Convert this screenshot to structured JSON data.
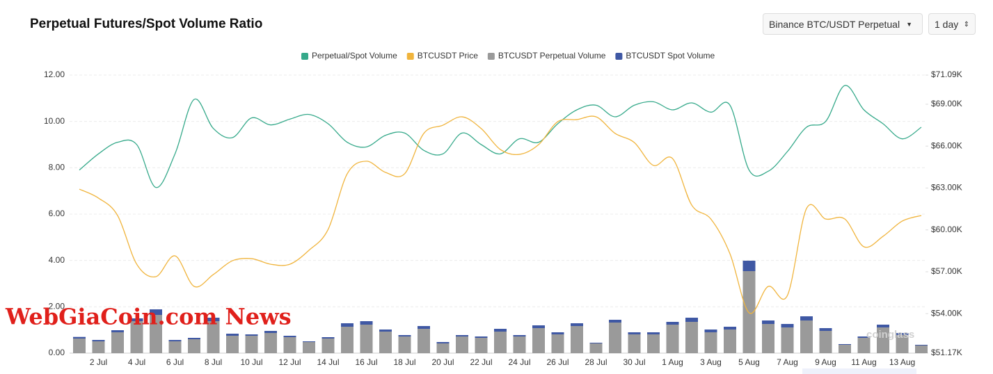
{
  "header": {
    "title": "Perpetual Futures/Spot Volume Ratio",
    "pair_select": "Binance BTC/USDT Perpetual",
    "interval_select": "1 day"
  },
  "watermark": "WebGiaCoin.com News",
  "brand_watermark": "coinglass",
  "chart_data": {
    "type": "combo",
    "categories": [
      null,
      "2 Jul",
      null,
      "4 Jul",
      null,
      "6 Jul",
      null,
      "8 Jul",
      null,
      "10 Jul",
      null,
      "12 Jul",
      null,
      "14 Jul",
      null,
      "16 Jul",
      null,
      "18 Jul",
      null,
      "20 Jul",
      null,
      "22 Jul",
      null,
      "24 Jul",
      null,
      "26 Jul",
      null,
      "28 Jul",
      null,
      "30 Jul",
      null,
      "1 Aug",
      null,
      "3 Aug",
      null,
      "5 Aug",
      null,
      "7 Aug",
      null,
      "9 Aug",
      null,
      "11 Aug",
      null,
      "13 Aug",
      null
    ],
    "ylim": [
      0,
      12
    ],
    "yticks": [
      {
        "value": 0,
        "label": "0.00"
      },
      {
        "value": 2,
        "label": "2.00"
      },
      {
        "value": 4,
        "label": "4.00"
      },
      {
        "value": 6,
        "label": "6.00"
      },
      {
        "value": 8,
        "label": "8.00"
      },
      {
        "value": 10,
        "label": "10.00"
      },
      {
        "value": 12,
        "label": "12.00"
      }
    ],
    "y2lim": [
      51170,
      71090
    ],
    "y2ticks": [
      {
        "value": 51170,
        "label": "$51.17K"
      },
      {
        "value": 54000,
        "label": "$54.00K"
      },
      {
        "value": 57000,
        "label": "$57.00K"
      },
      {
        "value": 60000,
        "label": "$60.00K"
      },
      {
        "value": 63000,
        "label": "$63.00K"
      },
      {
        "value": 66000,
        "label": "$66.00K"
      },
      {
        "value": 69000,
        "label": "$69.00K"
      },
      {
        "value": 71090,
        "label": "$71.09K"
      }
    ],
    "grid": true,
    "series": [
      {
        "name": "Perpetual/Spot Volume",
        "type": "line",
        "color": "#35a98a",
        "values": [
          7.9,
          8.6,
          9.1,
          9.0,
          7.15,
          8.6,
          10.95,
          9.7,
          9.3,
          10.15,
          9.85,
          10.1,
          10.3,
          9.9,
          9.1,
          8.9,
          9.4,
          9.5,
          8.75,
          8.6,
          9.5,
          9.0,
          8.6,
          9.25,
          9.1,
          9.9,
          10.5,
          10.7,
          10.2,
          10.7,
          10.85,
          10.5,
          10.8,
          10.4,
          10.7,
          7.9,
          7.85,
          8.7,
          9.75,
          10.0,
          11.55,
          10.5,
          9.9,
          9.25,
          9.75
        ]
      },
      {
        "name": "BTCUSDT Price",
        "type": "line",
        "axis": "y2",
        "color": "#f0b43c",
        "values": [
          62920,
          62280,
          61030,
          57540,
          56650,
          58140,
          55950,
          56800,
          57790,
          57940,
          57540,
          57540,
          58540,
          60030,
          64020,
          64920,
          64120,
          64020,
          66910,
          67500,
          68100,
          67260,
          65760,
          65410,
          66110,
          67750,
          67900,
          68100,
          66910,
          66260,
          64620,
          65110,
          61780,
          60780,
          58290,
          54060,
          55950,
          55300,
          61530,
          60780,
          60780,
          58790,
          59540,
          60630,
          61030
        ]
      },
      {
        "name": "BTCUSDT Perpetual Volume",
        "type": "bar",
        "color": "#9a9a9a",
        "values": [
          0.63,
          0.51,
          0.9,
          1.38,
          1.65,
          0.51,
          0.6,
          1.38,
          0.75,
          0.75,
          0.87,
          0.69,
          0.48,
          0.63,
          1.14,
          1.23,
          0.93,
          0.72,
          1.05,
          0.42,
          0.72,
          0.66,
          0.93,
          0.72,
          1.08,
          0.81,
          1.17,
          0.42,
          1.32,
          0.81,
          0.81,
          1.23,
          1.35,
          0.9,
          1.02,
          3.54,
          1.26,
          1.11,
          1.41,
          0.96,
          0.36,
          0.66,
          1.11,
          0.78,
          0.33
        ]
      },
      {
        "name": "BTCUSDT Spot Volume",
        "type": "bar",
        "color": "#3f58a4",
        "values": [
          0.07,
          0.06,
          0.09,
          0.12,
          0.24,
          0.06,
          0.06,
          0.15,
          0.09,
          0.06,
          0.09,
          0.06,
          0.03,
          0.06,
          0.15,
          0.15,
          0.09,
          0.06,
          0.12,
          0.06,
          0.06,
          0.06,
          0.12,
          0.06,
          0.12,
          0.09,
          0.12,
          0.03,
          0.12,
          0.09,
          0.09,
          0.12,
          0.18,
          0.12,
          0.12,
          0.45,
          0.15,
          0.15,
          0.18,
          0.12,
          0.03,
          0.06,
          0.12,
          0.09,
          0.03
        ]
      }
    ]
  }
}
